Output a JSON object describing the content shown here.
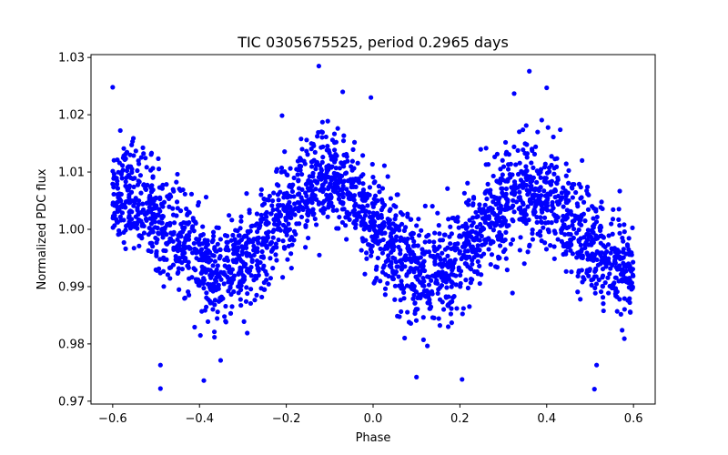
{
  "chart_data": {
    "type": "scatter",
    "title": "TIC 0305675525, period 0.2965 days",
    "xlabel": "Phase",
    "ylabel": "Normalized PDC flux",
    "xlim": [
      -0.65,
      0.65
    ],
    "ylim": [
      0.9695,
      1.0305
    ],
    "xticks": [
      -0.6,
      -0.4,
      -0.2,
      0.0,
      0.2,
      0.4,
      0.6
    ],
    "xtick_labels": [
      "−0.6",
      "−0.4",
      "−0.2",
      "0.0",
      "0.2",
      "0.4",
      "0.6"
    ],
    "yticks": [
      0.97,
      0.98,
      0.99,
      1.0,
      1.01,
      1.02,
      1.03
    ],
    "ytick_labels": [
      "0.97",
      "0.98",
      "0.99",
      "1.00",
      "1.01",
      "1.02",
      "1.03"
    ],
    "grid": false,
    "marker_color": "#0000ff",
    "series": [
      {
        "name": "PDC flux",
        "model": {
          "x_range": [
            -0.6,
            0.6
          ],
          "n_points": 2600,
          "mean": 1.0,
          "amplitude": 0.0075,
          "minima_phase": [
            -0.39,
            0.11
          ],
          "maxima_phase": [
            -0.11,
            0.36
          ],
          "scatter_sigma": 0.0045
        },
        "highlighted_points": [
          {
            "x": -0.6,
            "y": 1.0248
          },
          {
            "x": -0.125,
            "y": 1.0285
          },
          {
            "x": -0.07,
            "y": 1.024
          },
          {
            "x": -0.005,
            "y": 1.023
          },
          {
            "x": 0.325,
            "y": 1.0237
          },
          {
            "x": 0.36,
            "y": 1.0276
          },
          {
            "x": 0.4,
            "y": 1.0247
          },
          {
            "x": -0.49,
            "y": 0.9722
          },
          {
            "x": -0.39,
            "y": 0.9736
          },
          {
            "x": 0.1,
            "y": 0.9742
          },
          {
            "x": 0.205,
            "y": 0.9738
          },
          {
            "x": 0.51,
            "y": 0.9721
          },
          {
            "x": -0.49,
            "y": 0.9763
          },
          {
            "x": 0.515,
            "y": 0.9763
          }
        ]
      }
    ]
  }
}
